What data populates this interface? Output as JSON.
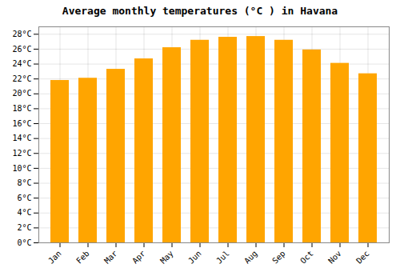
{
  "chart_data": {
    "type": "bar",
    "title": "Average monthly temperatures (°C ) in Havana",
    "categories": [
      "Jan",
      "Feb",
      "Mar",
      "Apr",
      "May",
      "Jun",
      "Jul",
      "Aug",
      "Sep",
      "Oct",
      "Nov",
      "Dec"
    ],
    "values": [
      21.8,
      22.1,
      23.3,
      24.7,
      26.2,
      27.2,
      27.6,
      27.7,
      27.2,
      25.9,
      24.1,
      22.7
    ],
    "color": "#FFA500",
    "ylim": [
      0,
      29
    ],
    "yticks": [
      {
        "value": 0,
        "label": "0°C"
      },
      {
        "value": 2,
        "label": "2°C"
      },
      {
        "value": 4,
        "label": "4°C"
      },
      {
        "value": 6,
        "label": "6°C"
      },
      {
        "value": 8,
        "label": "8°C"
      },
      {
        "value": 10,
        "label": "10°C"
      },
      {
        "value": 12,
        "label": "12°C"
      },
      {
        "value": 14,
        "label": "14°C"
      },
      {
        "value": 16,
        "label": "16°C"
      },
      {
        "value": 18,
        "label": "18°C"
      },
      {
        "value": 20,
        "label": "20°C"
      },
      {
        "value": 22,
        "label": "22°C"
      },
      {
        "value": 24,
        "label": "24°C"
      },
      {
        "value": 26,
        "label": "26°C"
      },
      {
        "value": 28,
        "label": "28°C"
      }
    ],
    "grid": true
  }
}
